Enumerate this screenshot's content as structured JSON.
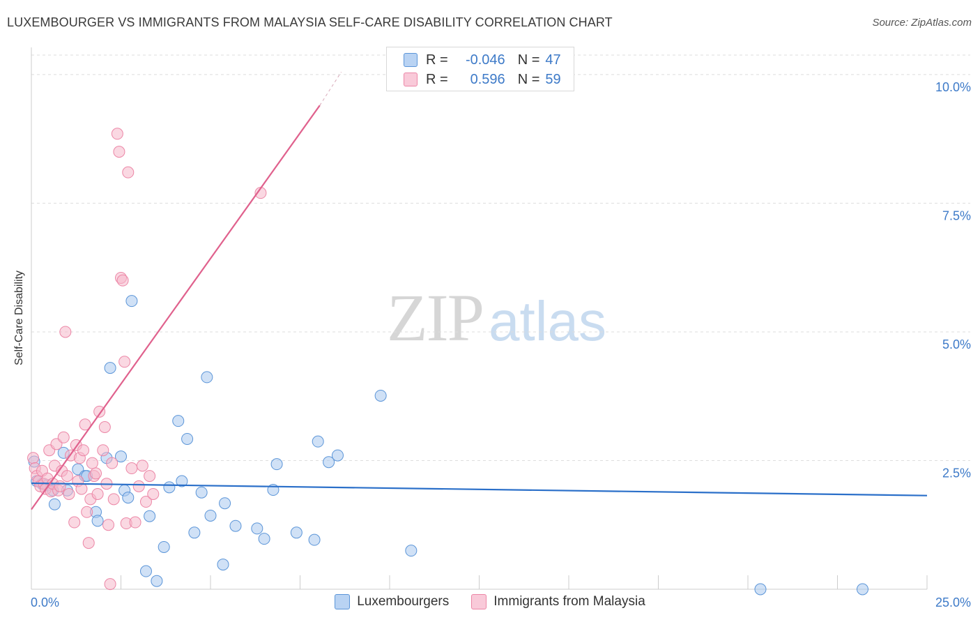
{
  "title": "LUXEMBOURGER VS IMMIGRANTS FROM MALAYSIA SELF-CARE DISABILITY CORRELATION CHART",
  "source": "Source: ZipAtlas.com",
  "watermark": {
    "part1": "ZIP",
    "part2": "atlas"
  },
  "colors": {
    "blue_fill": "#a9c8ef",
    "blue_stroke": "#5b95d8",
    "blue_line": "#2a6fc9",
    "pink_fill": "#f6b8cb",
    "pink_stroke": "#ec86a6",
    "pink_line": "#e0618d",
    "accent_text": "#3d7ac8",
    "grid": "#dddddd"
  },
  "legend_top": [
    {
      "r_label": "R =",
      "r_value": "-0.046",
      "n_label": "N =",
      "n_value": "47"
    },
    {
      "r_label": "R =",
      "r_value": "0.596",
      "n_label": "N =",
      "n_value": "59"
    }
  ],
  "legend_bottom": [
    "Luxembourgers",
    "Immigrants from Malaysia"
  ],
  "chart_data": {
    "type": "scatter",
    "title": "LUXEMBOURGER VS IMMIGRANTS FROM MALAYSIA SELF-CARE DISABILITY CORRELATION CHART",
    "xlabel": "",
    "ylabel": "Self-Care Disability",
    "xlim": [
      0,
      25
    ],
    "ylim": [
      0,
      10.5
    ],
    "x_tick_labels": [
      {
        "value": 0,
        "label": "0.0%"
      },
      {
        "value": 25,
        "label": "25.0%"
      }
    ],
    "y_tick_labels": [
      {
        "value": 2.5,
        "label": "2.5%"
      },
      {
        "value": 5.0,
        "label": "5.0%"
      },
      {
        "value": 7.5,
        "label": "7.5%"
      },
      {
        "value": 10.0,
        "label": "10.0%"
      }
    ],
    "grid": true,
    "legend_position": "top-center",
    "series": [
      {
        "name": "Luxembourgers",
        "color": "#a9c8ef",
        "x": [
          0.08,
          0.15,
          0.3,
          0.45,
          0.6,
          0.65,
          0.9,
          1.0,
          1.3,
          1.5,
          1.55,
          1.8,
          1.85,
          2.1,
          2.2,
          2.5,
          2.6,
          2.7,
          3.2,
          3.3,
          3.5,
          3.7,
          3.85,
          4.1,
          4.2,
          4.35,
          4.55,
          4.75,
          4.9,
          5.0,
          5.35,
          5.4,
          5.7,
          6.3,
          6.5,
          6.75,
          6.85,
          7.4,
          7.9,
          8.0,
          8.3,
          8.55,
          9.75,
          10.6,
          20.35,
          23.2,
          2.8
        ],
        "y": [
          2.48,
          2.1,
          2.05,
          2.02,
          1.92,
          1.65,
          2.65,
          1.92,
          2.33,
          2.2,
          2.2,
          1.5,
          1.33,
          2.55,
          4.3,
          2.58,
          1.92,
          1.78,
          0.35,
          1.42,
          0.16,
          0.82,
          1.98,
          3.27,
          2.1,
          2.92,
          1.1,
          1.88,
          4.12,
          1.43,
          0.48,
          1.67,
          1.23,
          1.18,
          0.98,
          1.93,
          2.43,
          1.1,
          0.96,
          2.87,
          2.47,
          2.6,
          3.76,
          0.75,
          0.0,
          0.0,
          5.6
        ],
        "r": "-0.046",
        "n": 47,
        "trend": {
          "x": [
            0,
            25
          ],
          "y": [
            2.06,
            1.82
          ]
        }
      },
      {
        "name": "Immigrants from Malaysia",
        "color": "#f6b8cb",
        "x": [
          0.05,
          0.1,
          0.15,
          0.2,
          0.25,
          0.3,
          0.35,
          0.4,
          0.45,
          0.5,
          0.55,
          0.6,
          0.65,
          0.7,
          0.75,
          0.8,
          0.85,
          0.9,
          0.95,
          1.0,
          1.05,
          1.1,
          1.2,
          1.25,
          1.3,
          1.35,
          1.4,
          1.45,
          1.5,
          1.55,
          1.6,
          1.65,
          1.7,
          1.75,
          1.8,
          1.85,
          1.9,
          2.0,
          2.05,
          2.1,
          2.15,
          2.2,
          2.25,
          2.3,
          2.4,
          2.45,
          2.5,
          2.55,
          2.6,
          2.65,
          2.7,
          2.8,
          2.9,
          3.0,
          3.1,
          3.2,
          3.3,
          3.4,
          6.4
        ],
        "y": [
          2.55,
          2.35,
          2.2,
          2.1,
          2.0,
          2.3,
          2.05,
          1.95,
          2.15,
          2.7,
          1.9,
          2.05,
          2.4,
          2.82,
          1.92,
          2.0,
          2.3,
          2.95,
          5.0,
          2.2,
          1.85,
          2.6,
          1.3,
          2.8,
          2.1,
          2.55,
          1.95,
          2.7,
          3.2,
          1.5,
          0.9,
          1.75,
          2.45,
          2.2,
          2.25,
          1.85,
          3.45,
          2.7,
          3.15,
          2.05,
          1.25,
          0.1,
          2.45,
          1.75,
          8.85,
          8.5,
          6.05,
          6.0,
          4.42,
          1.28,
          8.1,
          2.35,
          1.3,
          2.0,
          2.4,
          1.7,
          2.2,
          1.85,
          7.7
        ],
        "r": "0.596",
        "n": 59,
        "trend": {
          "x": [
            0,
            8.05
          ],
          "y": [
            1.55,
            9.4
          ],
          "dashed_to": {
            "x": 8.65,
            "y": 10.05
          }
        }
      }
    ]
  }
}
